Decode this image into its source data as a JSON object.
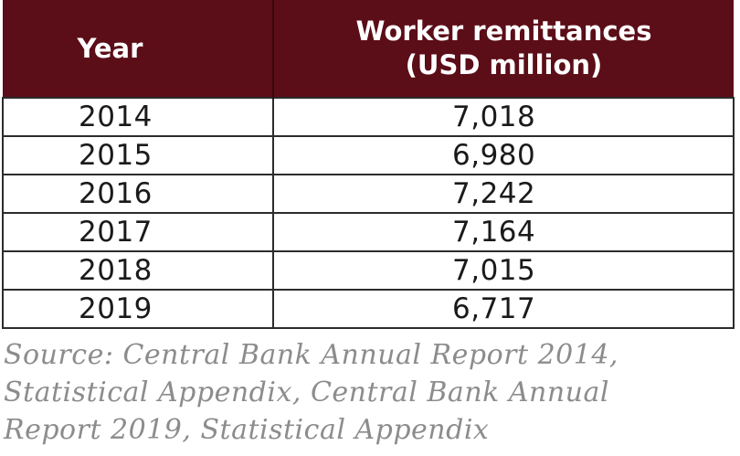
{
  "chart_data": {
    "type": "table",
    "columns": [
      "Year",
      "Worker remittances (USD million)"
    ],
    "header": {
      "year": "Year",
      "value_line1": "Worker remittances",
      "value_line2": "(USD million)"
    },
    "rows": [
      {
        "year": "2014",
        "value": "7,018"
      },
      {
        "year": "2015",
        "value": "6,980"
      },
      {
        "year": "2016",
        "value": "7,242"
      },
      {
        "year": "2017",
        "value": "7,164"
      },
      {
        "year": "2018",
        "value": "7,015"
      },
      {
        "year": "2019",
        "value": "6,717"
      }
    ],
    "x": [
      2014,
      2015,
      2016,
      2017,
      2018,
      2019
    ],
    "values": [
      7018,
      6980,
      7242,
      7164,
      7015,
      6717
    ],
    "source_lines": [
      "Source:  Central Bank Annual Report 2014,",
      "Statistical Appendix, Central Bank Annual",
      "Report 2019, Statistical Appendix"
    ]
  },
  "colors": {
    "header_background": "#5b0d18",
    "header_text": "#ffffff",
    "body_text": "#1a1a1a",
    "source_text": "#8c8c8c"
  }
}
